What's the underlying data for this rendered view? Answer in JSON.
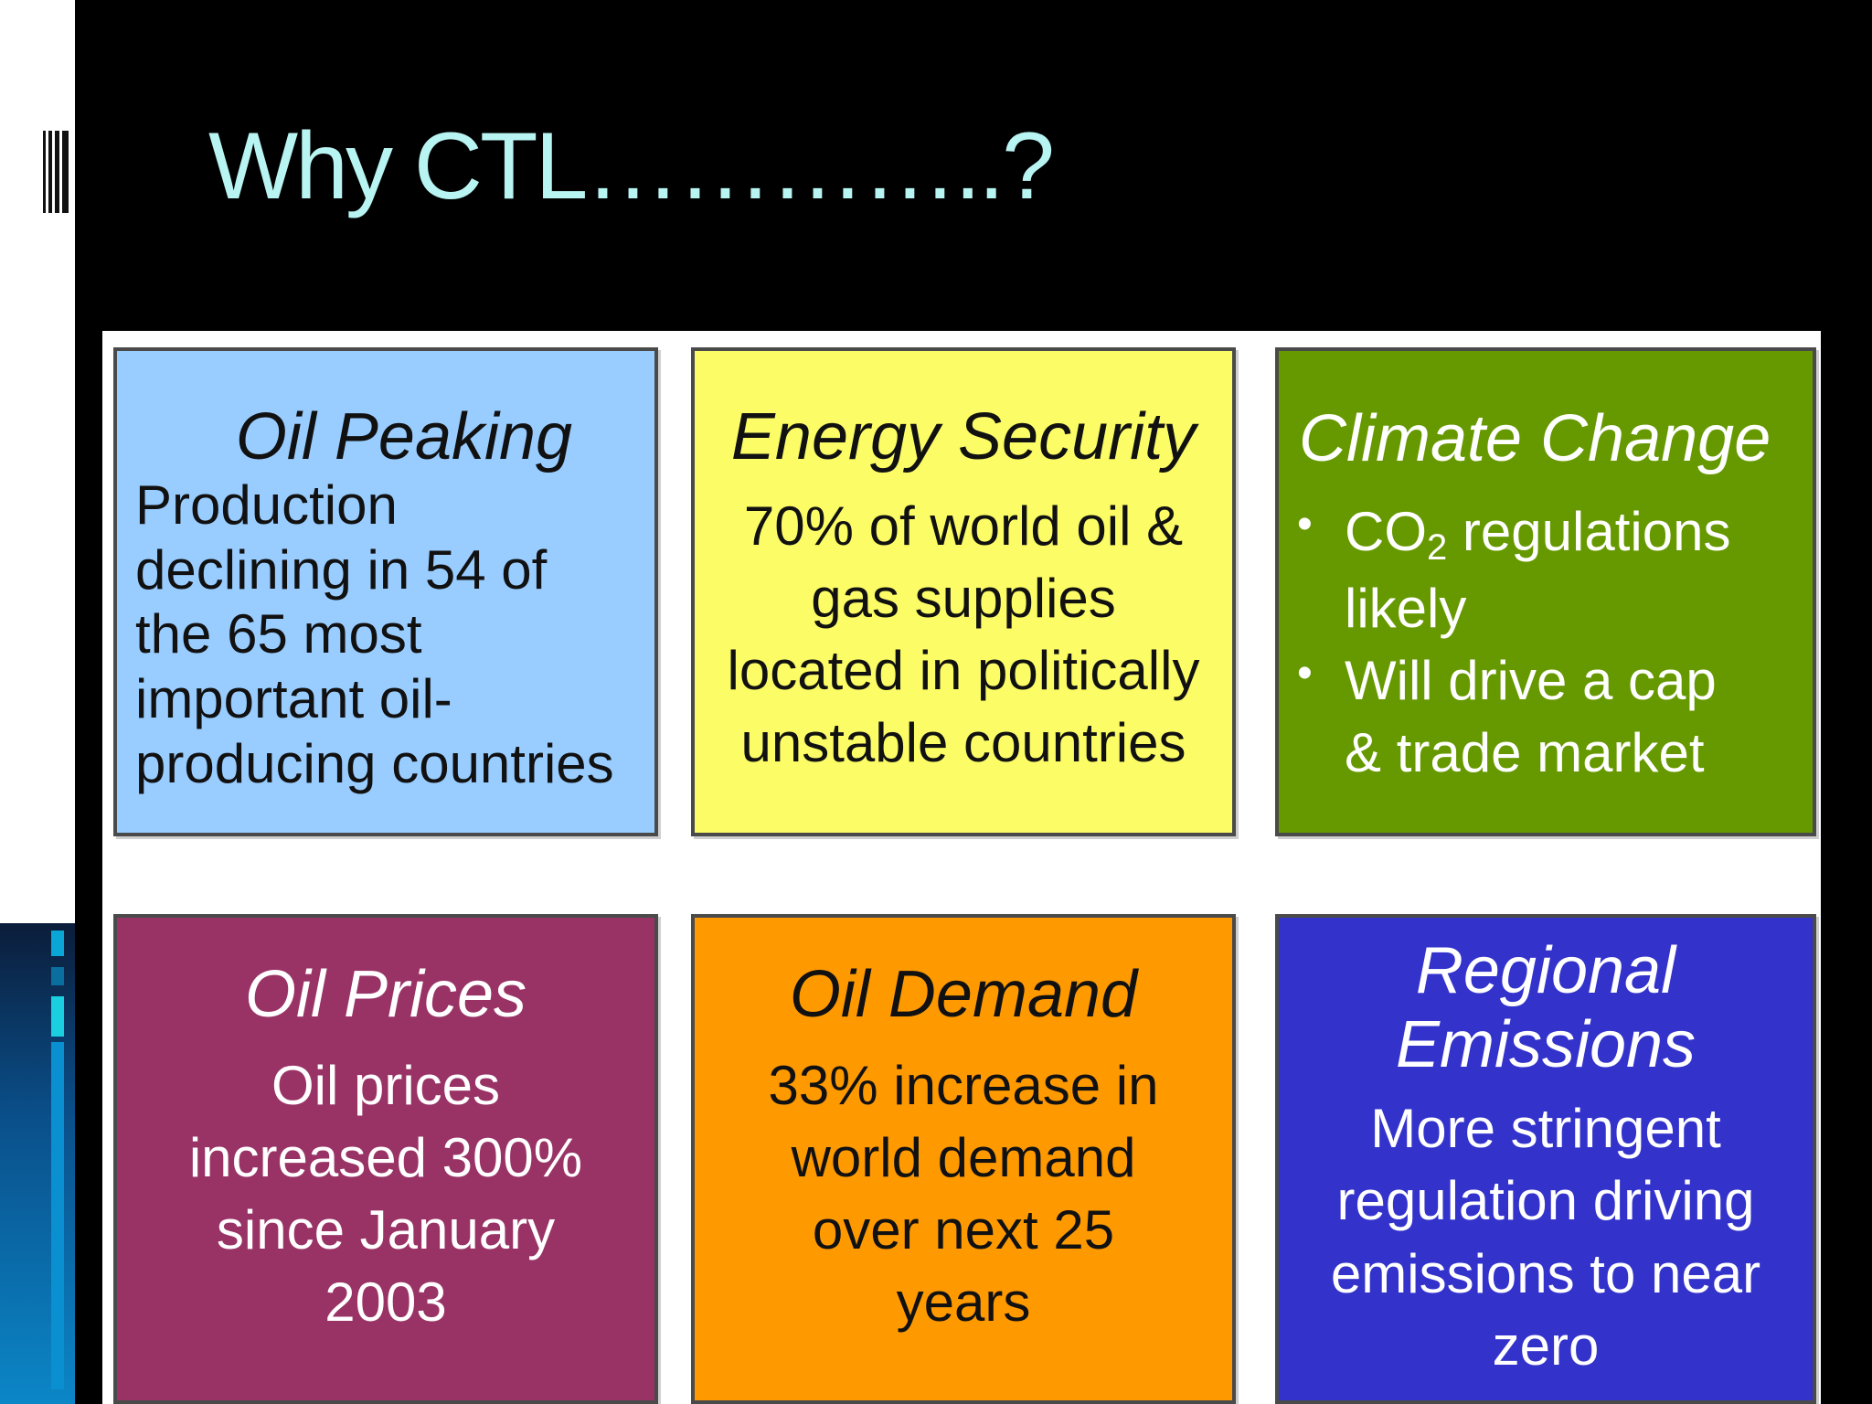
{
  "slide": {
    "title": "Why CTL…………..?"
  },
  "cards": [
    {
      "title": "Oil Peaking",
      "lines": [
        "Production",
        "declining in 54 of",
        "the 65 most",
        "important oil-",
        "producing countries"
      ],
      "background": "#99ccff"
    },
    {
      "title": "Energy Security",
      "lines": [
        "70% of world oil &",
        "gas supplies",
        "located in politically",
        "unstable countries"
      ],
      "background": "#fcfc66"
    },
    {
      "title": "Climate Change",
      "bullet1": {
        "part1": "CO",
        "sub": "2",
        "part2": " regulations",
        "line2": "likely"
      },
      "bullet2": {
        "line1": "Will drive a cap",
        "line2": "& trade market"
      },
      "background": "#669900"
    },
    {
      "title": "Oil Prices",
      "lines": [
        "Oil prices",
        "increased 300%",
        "since January",
        "2003"
      ],
      "background": "#993366"
    },
    {
      "title": "Oil Demand",
      "lines": [
        "33% increase in",
        "world demand",
        "over next 25",
        "years"
      ],
      "background": "#ff9900"
    },
    {
      "title_lines": [
        "Regional",
        "Emissions"
      ],
      "lines": [
        "More stringent",
        "regulation driving",
        "emissions to near",
        "zero"
      ],
      "background": "#3333cc"
    }
  ],
  "colors": {
    "title_text": "#b8f4f2",
    "slide_background": "#000000"
  }
}
